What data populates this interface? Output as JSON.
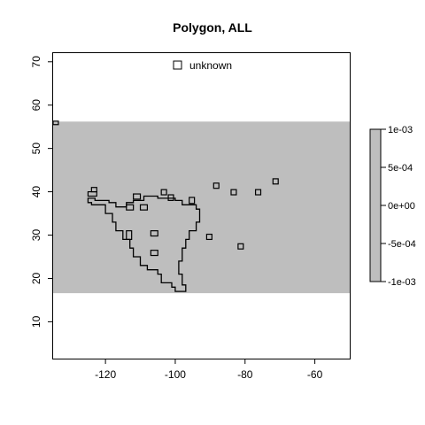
{
  "chart_data": {
    "type": "heatmap",
    "title": "Polygon, ALL",
    "xlabel": "",
    "ylabel": "",
    "xlim": [
      -135,
      -50
    ],
    "ylim": [
      1.5,
      72
    ],
    "x_ticks": [
      -120,
      -100,
      -80,
      -60
    ],
    "y_ticks": [
      10,
      20,
      30,
      40,
      50,
      60,
      70
    ],
    "raster_band": {
      "ymin": 16.6,
      "ymax": 56.2,
      "value": 0,
      "fill": "#bebebe"
    },
    "legend": {
      "position": "top",
      "entries": [
        {
          "label": "unknown",
          "symbol": "square"
        }
      ]
    },
    "colorbar": {
      "position": "right",
      "min": -0.001,
      "max": 0.001,
      "ticks": [
        -0.001,
        -0.0005,
        0,
        0.0005,
        0.001
      ],
      "tick_labels": [
        "-1e-03",
        "-5e-04",
        "0e+00",
        "5e-04",
        "1e-03"
      ],
      "fill": "#bebebe"
    },
    "main_outline": [
      [
        -125,
        38.5
      ],
      [
        -123,
        38.5
      ],
      [
        -123,
        38
      ],
      [
        -119,
        38
      ],
      [
        -119,
        37.5
      ],
      [
        -117,
        37.5
      ],
      [
        -117,
        36.5
      ],
      [
        -114,
        36.5
      ],
      [
        -114,
        37.5
      ],
      [
        -112,
        37.5
      ],
      [
        -112,
        38
      ],
      [
        -109,
        38
      ],
      [
        -109,
        39
      ],
      [
        -105,
        39
      ],
      [
        -105,
        38.5
      ],
      [
        -100,
        38.5
      ],
      [
        -100,
        38
      ],
      [
        -98,
        38
      ],
      [
        -98,
        37
      ],
      [
        -94,
        37
      ],
      [
        -94,
        36
      ],
      [
        -93,
        36
      ],
      [
        -93,
        33
      ],
      [
        -94,
        33
      ],
      [
        -94,
        31
      ],
      [
        -96,
        31
      ],
      [
        -96,
        29
      ],
      [
        -97,
        29
      ],
      [
        -97,
        27
      ],
      [
        -98,
        27
      ],
      [
        -98,
        24
      ],
      [
        -99,
        24
      ],
      [
        -99,
        21
      ],
      [
        -98,
        21
      ],
      [
        -98,
        18.5
      ],
      [
        -97,
        18.5
      ],
      [
        -97,
        17
      ],
      [
        -100,
        17
      ],
      [
        -100,
        18
      ],
      [
        -101,
        18
      ],
      [
        -101,
        19
      ],
      [
        -104,
        19
      ],
      [
        -104,
        21
      ],
      [
        -105,
        21
      ],
      [
        -105,
        22
      ],
      [
        -108,
        22
      ],
      [
        -108,
        23
      ],
      [
        -110,
        23
      ],
      [
        -110,
        25
      ],
      [
        -112,
        25
      ],
      [
        -112,
        27
      ],
      [
        -113,
        27
      ],
      [
        -113,
        29
      ],
      [
        -115,
        29
      ],
      [
        -115,
        31
      ],
      [
        -117,
        31
      ],
      [
        -117,
        33
      ],
      [
        -118,
        33
      ],
      [
        -118,
        35
      ],
      [
        -120,
        35
      ],
      [
        -120,
        37
      ],
      [
        -124,
        37
      ],
      [
        -124,
        37.5
      ],
      [
        -125,
        37.5
      ],
      [
        -125,
        38.5
      ]
    ],
    "small_rects": [
      {
        "x0": -135,
        "x1": -133.5,
        "y0": 55.5,
        "y1": 56.3
      },
      {
        "x0": -125,
        "x1": -122.5,
        "y0": 39,
        "y1": 40
      },
      {
        "x0": -124,
        "x1": -122.5,
        "y0": 40,
        "y1": 41
      },
      {
        "x0": -112,
        "x1": -110,
        "y0": 38.3,
        "y1": 39.5
      },
      {
        "x0": -114,
        "x1": -112,
        "y0": 35.8,
        "y1": 37
      },
      {
        "x0": -110,
        "x1": -108,
        "y0": 35.8,
        "y1": 37
      },
      {
        "x0": -104,
        "x1": -102.5,
        "y0": 39.3,
        "y1": 40.5
      },
      {
        "x0": -102,
        "x1": -100.5,
        "y0": 38,
        "y1": 39.3
      },
      {
        "x0": -96,
        "x1": -94.5,
        "y0": 37.3,
        "y1": 38.7
      },
      {
        "x0": -89,
        "x1": -87.5,
        "y0": 40.8,
        "y1": 42
      },
      {
        "x0": -84,
        "x1": -82.5,
        "y0": 39.3,
        "y1": 40.5
      },
      {
        "x0": -77,
        "x1": -75.5,
        "y0": 39.3,
        "y1": 40.5
      },
      {
        "x0": -72,
        "x1": -70.5,
        "y0": 41.8,
        "y1": 43
      },
      {
        "x0": -114,
        "x1": -112.5,
        "y0": 29,
        "y1": 31
      },
      {
        "x0": -107,
        "x1": -105,
        "y0": 29.8,
        "y1": 31
      },
      {
        "x0": -91,
        "x1": -89.5,
        "y0": 29,
        "y1": 30.2
      },
      {
        "x0": -82,
        "x1": -80.5,
        "y0": 26.8,
        "y1": 28
      },
      {
        "x0": -107,
        "x1": -105,
        "y0": 25.3,
        "y1": 26.5
      }
    ]
  }
}
